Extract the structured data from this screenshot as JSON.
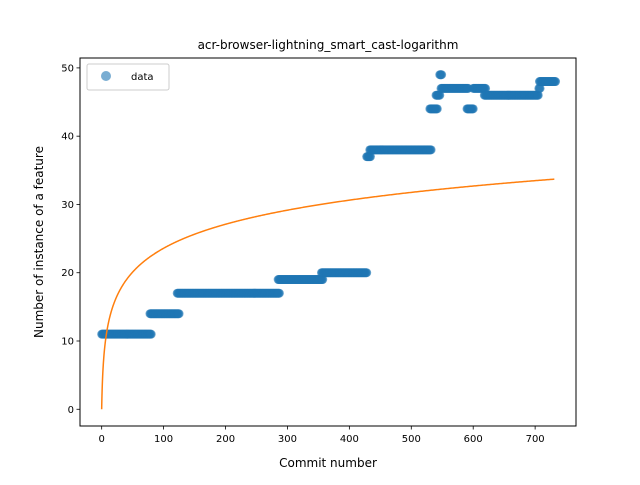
{
  "chart_data": {
    "type": "scatter",
    "title": "acr-browser-lightning_smart_cast-logarithm",
    "xlabel": "Commit number",
    "ylabel": "Number of instance of a feature",
    "xlim": [
      -35,
      766
    ],
    "ylim": [
      -2.45,
      51.45
    ],
    "xticks": [
      0,
      100,
      200,
      300,
      400,
      500,
      600,
      700
    ],
    "yticks": [
      0,
      10,
      20,
      30,
      40,
      50
    ],
    "legend": {
      "placement": "top-left",
      "entries": [
        "data"
      ]
    },
    "colors": {
      "data": "#1f77b4",
      "fit": "#ff7f0e"
    },
    "series": [
      {
        "name": "data",
        "kind": "scatter",
        "segments": [
          {
            "x_start": 0,
            "x_end": 80,
            "y": 11
          },
          {
            "x_start": 78,
            "x_end": 125,
            "y": 14
          },
          {
            "x_start": 122,
            "x_end": 287,
            "y": 17
          },
          {
            "x_start": 285,
            "x_end": 357,
            "y": 19
          },
          {
            "x_start": 355,
            "x_end": 428,
            "y": 20
          },
          {
            "x_start": 428,
            "x_end": 434,
            "y": 37
          },
          {
            "x_start": 433,
            "x_end": 532,
            "y": 38
          },
          {
            "x_start": 530,
            "x_end": 542,
            "y": 44
          },
          {
            "x_start": 540,
            "x_end": 546,
            "y": 46
          },
          {
            "x_start": 546,
            "x_end": 549,
            "y": 49
          },
          {
            "x_start": 548,
            "x_end": 592,
            "y": 47
          },
          {
            "x_start": 590,
            "x_end": 600,
            "y": 44
          },
          {
            "x_start": 600,
            "x_end": 620,
            "y": 47
          },
          {
            "x_start": 618,
            "x_end": 705,
            "y": 46
          },
          {
            "x_start": 706,
            "x_end": 708,
            "y": 47
          },
          {
            "x_start": 707,
            "x_end": 733,
            "y": 48
          }
        ]
      },
      {
        "name": "",
        "kind": "line",
        "model": "logarithmic",
        "coefficient": 5.11,
        "x_start": 0,
        "x_end": 731
      }
    ]
  }
}
